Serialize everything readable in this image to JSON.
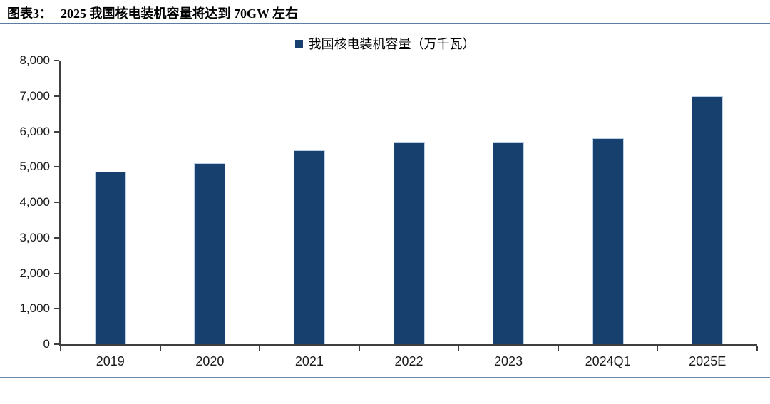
{
  "header": {
    "title_prefix": "图表3：",
    "title_text": "2025 我国核电装机容量将达到 70GW 左右"
  },
  "chart_data": {
    "type": "bar",
    "title": "2025 我国核电装机容量将达到 70GW 左右",
    "legend": [
      "我国核电装机容量（万千瓦）"
    ],
    "legend_position": "top-center",
    "categories": [
      "2019",
      "2020",
      "2021",
      "2022",
      "2023",
      "2024Q1",
      "2025E"
    ],
    "series": [
      {
        "name": "我国核电装机容量（万千瓦）",
        "values": [
          4874,
          5103,
          5465,
          5699,
          5708,
          5808,
          7000
        ]
      }
    ],
    "xlabel": "",
    "ylabel": "",
    "ylim": [
      0,
      8000
    ],
    "ytick_values": [
      0,
      1000,
      2000,
      3000,
      4000,
      5000,
      6000,
      7000,
      8000
    ],
    "ytick_labels": [
      "0",
      "1,000",
      "2,000",
      "3,000",
      "4,000",
      "5,000",
      "6,000",
      "7,000",
      "8,000"
    ],
    "grid": false
  },
  "colors": {
    "bar_fill": "#17406f",
    "bar_edge": "#bcd0e6",
    "axis": "#3f3f3f",
    "title_rule": "#5a7ea8",
    "bottom_rule": "#6c8cae",
    "text": "#1a1a1a"
  }
}
